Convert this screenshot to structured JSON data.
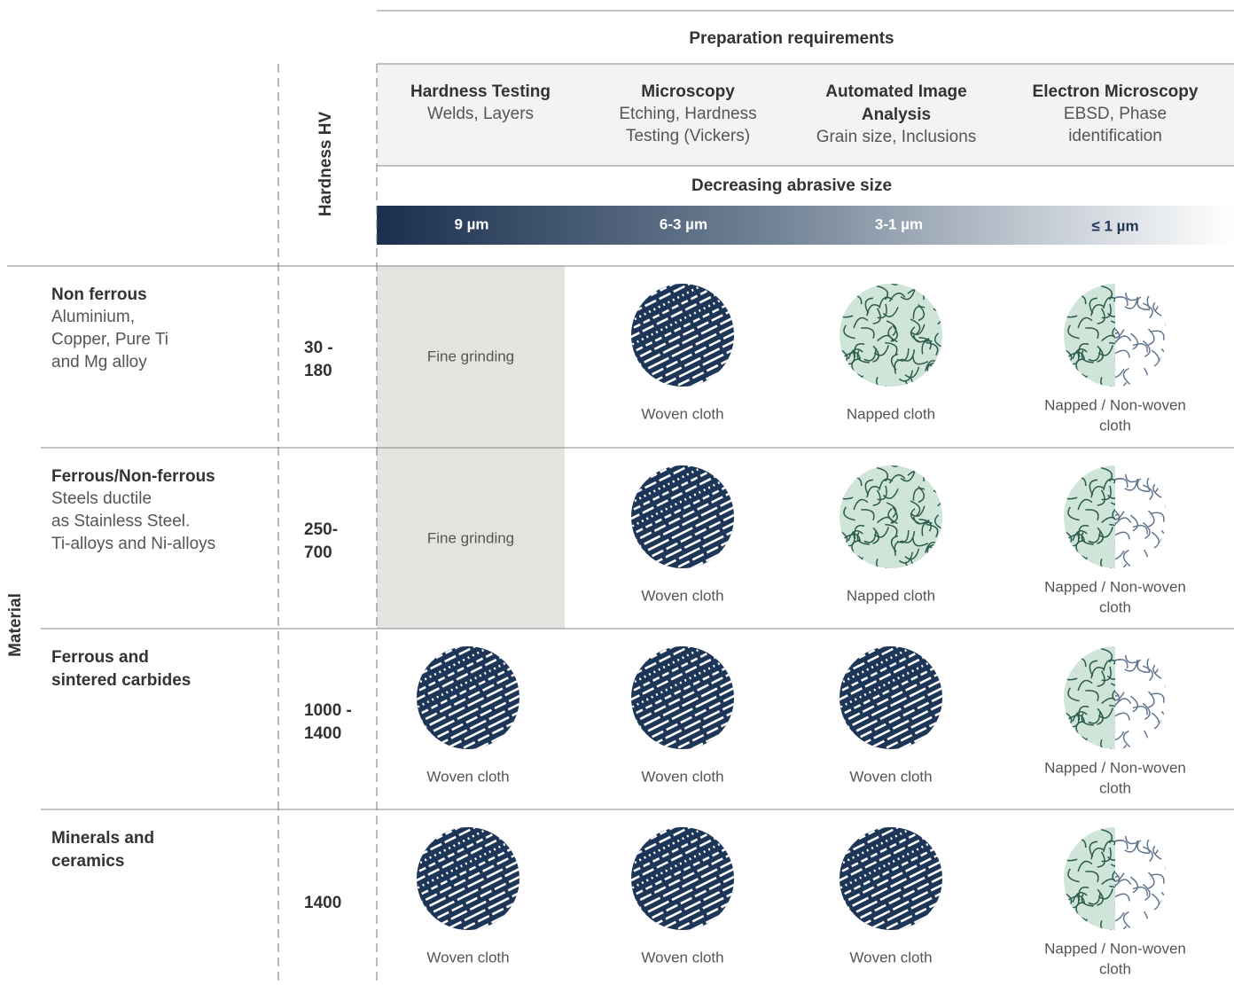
{
  "header": {
    "title": "Preparation requirements",
    "hardness_label": "Hardness HV",
    "material_label": "Material",
    "columns": [
      {
        "title": [
          "Hardness Testing"
        ],
        "subtitle": [
          "Welds, Layers"
        ]
      },
      {
        "title": [
          "Microscopy"
        ],
        "subtitle": [
          "Etching, Hardness",
          "Testing (Vickers)"
        ]
      },
      {
        "title": [
          "Automated Image",
          "Analysis"
        ],
        "subtitle": [
          "Grain size, Inclusions"
        ]
      },
      {
        "title": [
          "Electron Microscopy"
        ],
        "subtitle": [
          "EBSD, Phase",
          "identification"
        ]
      }
    ],
    "abrasive_title": "Decreasing abrasive size",
    "abrasive_sizes": [
      "9 µm",
      "6-3 µm",
      "3-1 µm",
      "≤ 1 µm"
    ]
  },
  "rows": [
    {
      "material": [
        "Non ferrous"
      ],
      "details": [
        "Aluminium,",
        "Copper, Pure Ti",
        "and Mg alloy"
      ],
      "hardness": [
        "30 -",
        "180"
      ],
      "cells": [
        [
          "Fine grinding"
        ],
        [
          "Woven cloth"
        ],
        [
          "Napped cloth"
        ],
        [
          "Napped / Non-woven",
          "cloth"
        ]
      ]
    },
    {
      "material": [
        "Ferrous/Non-ferrous"
      ],
      "details": [
        "Steels ductile",
        "as Stainless Steel.",
        "Ti-alloys and Ni-alloys"
      ],
      "hardness": [
        "250-",
        "700"
      ],
      "cells": [
        [
          "Fine grinding"
        ],
        [
          "Woven cloth"
        ],
        [
          "Napped cloth"
        ],
        [
          "Napped / Non-woven",
          "cloth"
        ]
      ]
    },
    {
      "material": [
        "Ferrous and",
        "sintered carbides"
      ],
      "hardness": [
        "1000 -",
        "1400"
      ],
      "cells": [
        [
          "Woven cloth"
        ],
        [
          "Woven cloth"
        ],
        [
          "Woven cloth"
        ],
        [
          "Napped / Non-woven",
          "cloth"
        ]
      ]
    },
    {
      "material": [
        "Minerals and",
        "ceramics"
      ],
      "hardness": [
        "1400"
      ],
      "cells": [
        [
          "Woven cloth"
        ],
        [
          "Woven cloth"
        ],
        [
          "Woven cloth"
        ],
        [
          "Napped / Non-woven",
          "cloth"
        ]
      ]
    }
  ]
}
